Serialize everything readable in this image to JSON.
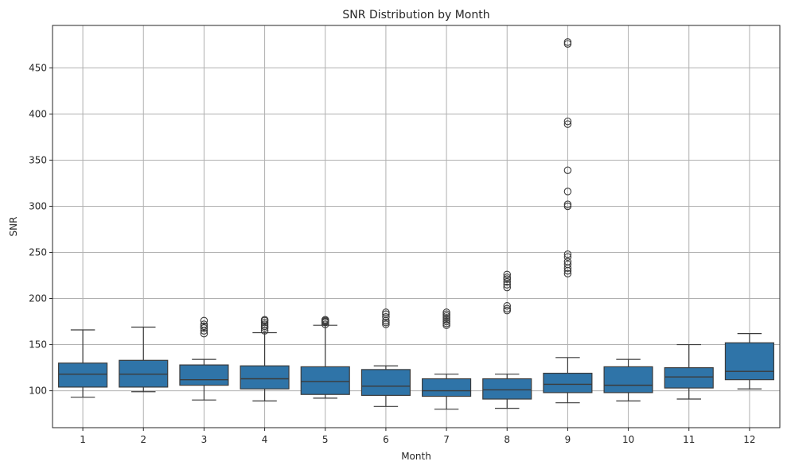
{
  "chart_data": {
    "type": "boxplot",
    "title": "SNR Distribution by Month",
    "xlabel": "Month",
    "ylabel": "SNR",
    "categories": [
      "1",
      "2",
      "3",
      "4",
      "5",
      "6",
      "7",
      "8",
      "9",
      "10",
      "11",
      "12"
    ],
    "yticks": [
      100,
      150,
      200,
      250,
      300,
      350,
      400,
      450
    ],
    "ylim": [
      60,
      496
    ],
    "grid": true,
    "box_color": "#2f74a8",
    "edge_color": "#3b3b3b",
    "grid_color": "#b0b0b0",
    "boxes": [
      {
        "category": "1",
        "whislo": 93,
        "q1": 104,
        "med": 118,
        "q3": 130,
        "whishi": 166,
        "fliers": []
      },
      {
        "category": "2",
        "whislo": 99,
        "q1": 104,
        "med": 118,
        "q3": 133,
        "whishi": 169,
        "fliers": []
      },
      {
        "category": "3",
        "whislo": 90,
        "q1": 106,
        "med": 112,
        "q3": 128,
        "whishi": 134,
        "fliers": [
          162,
          165,
          168,
          170,
          172,
          176
        ]
      },
      {
        "category": "4",
        "whislo": 89,
        "q1": 102,
        "med": 113,
        "q3": 127,
        "whishi": 163,
        "fliers": [
          165,
          168,
          170,
          172,
          174,
          176,
          177
        ]
      },
      {
        "category": "5",
        "whislo": 92,
        "q1": 96,
        "med": 110,
        "q3": 126,
        "whishi": 171,
        "fliers": [
          172,
          174,
          175,
          176,
          177
        ]
      },
      {
        "category": "6",
        "whislo": 83,
        "q1": 95,
        "med": 105,
        "q3": 123,
        "whishi": 127,
        "fliers": [
          172,
          174,
          176,
          180,
          183,
          185
        ]
      },
      {
        "category": "7",
        "whislo": 80,
        "q1": 94,
        "med": 100,
        "q3": 113,
        "whishi": 118,
        "fliers": [
          171,
          173,
          175,
          177,
          179,
          181,
          183,
          185
        ]
      },
      {
        "category": "8",
        "whislo": 81,
        "q1": 91,
        "med": 101,
        "q3": 113,
        "whishi": 118,
        "fliers": [
          187,
          189,
          192,
          212,
          215,
          218,
          221,
          223,
          226
        ]
      },
      {
        "category": "9",
        "whislo": 87,
        "q1": 98,
        "med": 107,
        "q3": 119,
        "whishi": 136,
        "fliers": [
          227,
          230,
          233,
          237,
          240,
          245,
          248,
          300,
          302,
          316,
          339,
          389,
          392,
          476,
          478
        ]
      },
      {
        "category": "10",
        "whislo": 89,
        "q1": 98,
        "med": 106,
        "q3": 126,
        "whishi": 134,
        "fliers": []
      },
      {
        "category": "11",
        "whislo": 91,
        "q1": 103,
        "med": 115,
        "q3": 125,
        "whishi": 150,
        "fliers": []
      },
      {
        "category": "12",
        "whislo": 102,
        "q1": 112,
        "med": 121,
        "q3": 152,
        "whishi": 162,
        "fliers": []
      }
    ]
  }
}
